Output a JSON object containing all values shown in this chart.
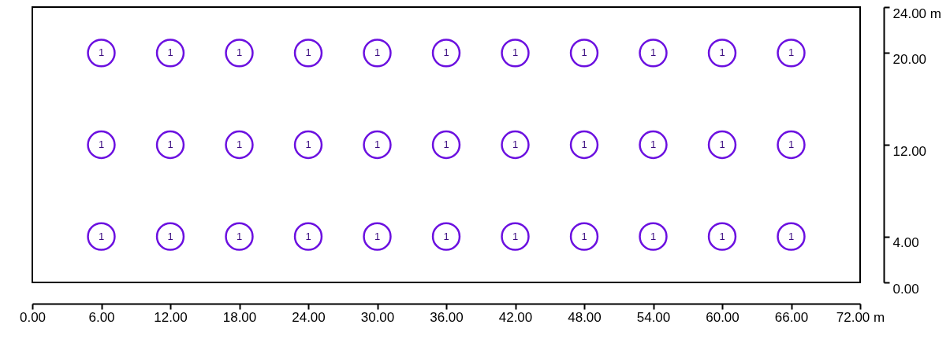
{
  "chart_data": {
    "type": "scatter",
    "marker": "circle",
    "grid": false,
    "x": [
      6,
      12,
      18,
      24,
      30,
      36,
      42,
      48,
      54,
      60,
      66,
      6,
      12,
      18,
      24,
      30,
      36,
      42,
      48,
      54,
      60,
      66,
      6,
      12,
      18,
      24,
      30,
      36,
      42,
      48,
      54,
      60,
      66
    ],
    "values": [
      20,
      20,
      20,
      20,
      20,
      20,
      20,
      20,
      20,
      20,
      20,
      12,
      12,
      12,
      12,
      12,
      12,
      12,
      12,
      12,
      12,
      12,
      4,
      4,
      4,
      4,
      4,
      4,
      4,
      4,
      4,
      4,
      4
    ],
    "color": "#6b10e0",
    "xlim": [
      0,
      72
    ],
    "ylim": [
      0,
      24
    ],
    "xticks": [
      {
        "value": 0,
        "label": "0.00"
      },
      {
        "value": 6,
        "label": "6.00"
      },
      {
        "value": 12,
        "label": "12.00"
      },
      {
        "value": 18,
        "label": "18.00"
      },
      {
        "value": 24,
        "label": "24.00"
      },
      {
        "value": 30,
        "label": "30.00"
      },
      {
        "value": 36,
        "label": "36.00"
      },
      {
        "value": 42,
        "label": "42.00"
      },
      {
        "value": 48,
        "label": "48.00"
      },
      {
        "value": 54,
        "label": "54.00"
      },
      {
        "value": 60,
        "label": "60.00"
      },
      {
        "value": 66,
        "label": "66.00"
      },
      {
        "value": 72,
        "label": "72.00 m"
      }
    ],
    "yticks": [
      {
        "value": 0,
        "label": "0.00"
      },
      {
        "value": 4,
        "label": "4.00"
      },
      {
        "value": 12,
        "label": "12.00"
      },
      {
        "value": 20,
        "label": "20.00"
      },
      {
        "value": 24,
        "label": "24.00 m"
      }
    ],
    "annotations": [
      {
        "text": "1",
        "x": 6,
        "y": 20
      },
      {
        "text": "1",
        "x": 12,
        "y": 20
      },
      {
        "text": "1",
        "x": 18,
        "y": 20
      },
      {
        "text": "1",
        "x": 24,
        "y": 20
      },
      {
        "text": "1",
        "x": 30,
        "y": 20
      },
      {
        "text": "1",
        "x": 36,
        "y": 20
      },
      {
        "text": "1",
        "x": 42,
        "y": 20
      },
      {
        "text": "1",
        "x": 48,
        "y": 20
      },
      {
        "text": "1",
        "x": 54,
        "y": 20
      },
      {
        "text": "1",
        "x": 60,
        "y": 20
      },
      {
        "text": "1",
        "x": 66,
        "y": 20
      },
      {
        "text": "1",
        "x": 6,
        "y": 12
      },
      {
        "text": "1",
        "x": 12,
        "y": 12
      },
      {
        "text": "1",
        "x": 18,
        "y": 12
      },
      {
        "text": "1",
        "x": 24,
        "y": 12
      },
      {
        "text": "1",
        "x": 30,
        "y": 12
      },
      {
        "text": "1",
        "x": 36,
        "y": 12
      },
      {
        "text": "1",
        "x": 42,
        "y": 12
      },
      {
        "text": "1",
        "x": 48,
        "y": 12
      },
      {
        "text": "1",
        "x": 54,
        "y": 12
      },
      {
        "text": "1",
        "x": 60,
        "y": 12
      },
      {
        "text": "1",
        "x": 66,
        "y": 12
      },
      {
        "text": "1",
        "x": 6,
        "y": 4
      },
      {
        "text": "1",
        "x": 12,
        "y": 4
      },
      {
        "text": "1",
        "x": 18,
        "y": 4
      },
      {
        "text": "1",
        "x": 24,
        "y": 4
      },
      {
        "text": "1",
        "x": 30,
        "y": 4
      },
      {
        "text": "1",
        "x": 36,
        "y": 4
      },
      {
        "text": "1",
        "x": 42,
        "y": 4
      },
      {
        "text": "1",
        "x": 48,
        "y": 4
      },
      {
        "text": "1",
        "x": 54,
        "y": 4
      },
      {
        "text": "1",
        "x": 60,
        "y": 4
      },
      {
        "text": "1",
        "x": 66,
        "y": 4
      }
    ]
  }
}
